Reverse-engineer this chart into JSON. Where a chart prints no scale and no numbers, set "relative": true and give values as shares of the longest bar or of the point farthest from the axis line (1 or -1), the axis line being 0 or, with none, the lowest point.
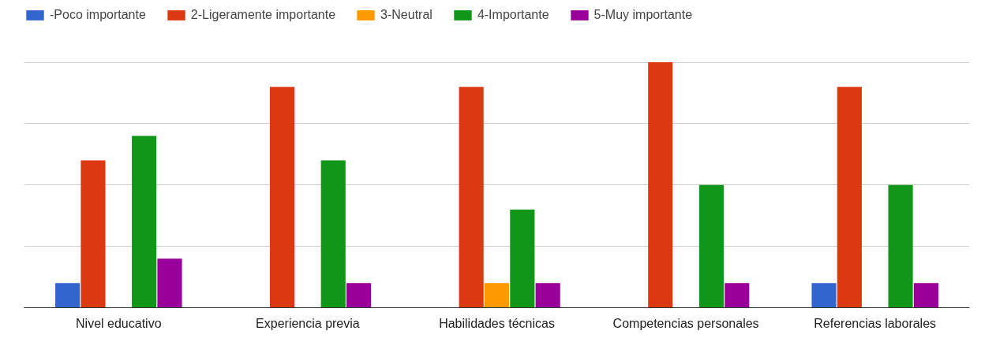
{
  "chart_data": {
    "type": "bar",
    "relative": true,
    "grid": "y",
    "legend": "top",
    "categories": [
      "Nivel educativo",
      "Experiencia previa",
      "Habilidades técnicas",
      "Competencias personales",
      "Referencias laborales"
    ],
    "series": [
      {
        "name": "-Poco importante",
        "color": "#3366cc",
        "values": [
          0.1,
          0,
          0,
          0,
          0.1
        ]
      },
      {
        "name": "2-Ligeramente importante",
        "color": "#dc3912",
        "values": [
          0.6,
          0.9,
          0.9,
          1.0,
          0.9
        ]
      },
      {
        "name": "3-Neutral",
        "color": "#ff9900",
        "values": [
          0,
          0,
          0.1,
          0,
          0
        ]
      },
      {
        "name": "4-Importante",
        "color": "#109618",
        "values": [
          0.7,
          0.6,
          0.4,
          0.5,
          0.5
        ]
      },
      {
        "name": "5-Muy importante",
        "color": "#990099",
        "values": [
          0.2,
          0.1,
          0.1,
          0.1,
          0.1
        ]
      }
    ]
  }
}
